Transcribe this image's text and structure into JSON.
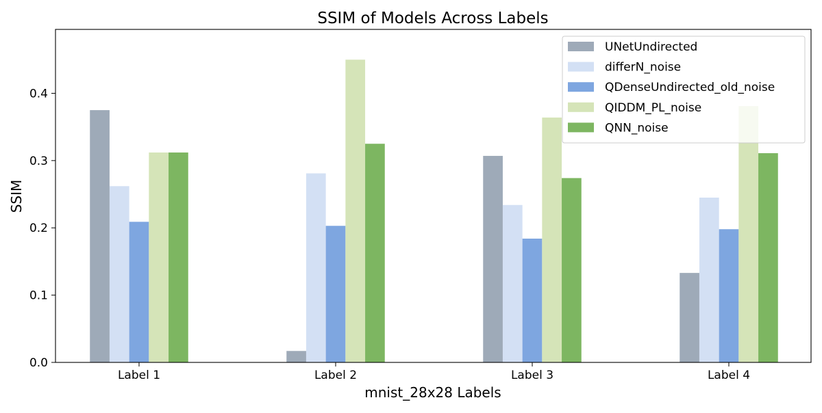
{
  "chart_data": {
    "type": "bar",
    "title": "SSIM of Models Across Labels",
    "xlabel": "mnist_28x28 Labels",
    "ylabel": "SSIM",
    "categories": [
      "Label 1",
      "Label 2",
      "Label 3",
      "Label 4"
    ],
    "ylim": [
      0,
      0.495
    ],
    "yticks": [
      "0.0",
      "0.1",
      "0.2",
      "0.3",
      "0.4"
    ],
    "grid": false,
    "legend_position": "top-right",
    "series": [
      {
        "name": "UNetUndirected",
        "color": "#9eaab8",
        "values": [
          0.375,
          0.017,
          0.307,
          0.133
        ]
      },
      {
        "name": "differN_noise",
        "color": "#d3e0f4",
        "values": [
          0.262,
          0.281,
          0.234,
          0.245
        ]
      },
      {
        "name": "QDenseUndirected_old_noise",
        "color": "#7ea6e0",
        "values": [
          0.209,
          0.203,
          0.184,
          0.198
        ]
      },
      {
        "name": "QIDDM_PL_noise",
        "color": "#d5e4b8",
        "values": [
          0.312,
          0.45,
          0.364,
          0.381
        ]
      },
      {
        "name": "QNN_noise",
        "color": "#7db661",
        "values": [
          0.312,
          0.325,
          0.274,
          0.311
        ]
      }
    ]
  }
}
